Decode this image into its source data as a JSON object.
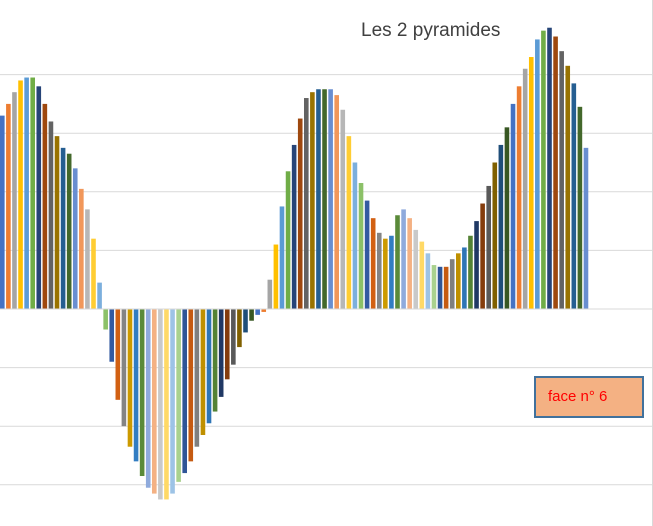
{
  "chart_data": {
    "type": "bar",
    "title": "Les 2 pyramides",
    "ylim": [
      -3.2,
      4.9
    ],
    "grid": true,
    "palette": [
      "#4472c4",
      "#ed7d31",
      "#a5a5a5",
      "#ffc000",
      "#5b9bd5",
      "#70ad47",
      "#264478",
      "#9e480e",
      "#636363",
      "#997300",
      "#255e91",
      "#43682b",
      "#698ed0",
      "#f1975a",
      "#b7b7b7",
      "#ffcd33",
      "#7cafdd",
      "#8cc168",
      "#335aa1",
      "#d26012",
      "#848484",
      "#cc9a00",
      "#327dc2",
      "#5a8a39",
      "#8faadc",
      "#f4b183",
      "#c9c9c9",
      "#ffd966",
      "#9dc3e6",
      "#a9d18e",
      "#2f5597",
      "#c55a11",
      "#7f7f7f",
      "#bf9000",
      "#2e75b6",
      "#548235",
      "#203864",
      "#843c0c",
      "#595959",
      "#806000",
      "#1f4e79",
      "#385723"
    ],
    "values": [
      3.3,
      3.5,
      3.7,
      3.9,
      3.95,
      3.95,
      3.8,
      3.5,
      3.2,
      2.95,
      2.75,
      2.65,
      2.4,
      2.05,
      1.7,
      1.2,
      0.45,
      -0.35,
      -0.9,
      -1.55,
      -2.0,
      -2.35,
      -2.6,
      -2.85,
      -3.05,
      -3.15,
      -3.25,
      -3.25,
      -3.15,
      -2.95,
      -2.8,
      -2.6,
      -2.35,
      -2.15,
      -1.95,
      -1.75,
      -1.5,
      -1.2,
      -0.95,
      -0.65,
      -0.4,
      -0.2,
      -0.1,
      -0.05,
      0.5,
      1.1,
      1.75,
      2.35,
      2.8,
      3.25,
      3.6,
      3.7,
      3.75,
      3.75,
      3.75,
      3.65,
      3.4,
      2.95,
      2.5,
      2.15,
      1.85,
      1.55,
      1.3,
      1.2,
      1.25,
      1.6,
      1.7,
      1.55,
      1.35,
      1.15,
      0.95,
      0.75,
      0.72,
      0.72,
      0.85,
      0.95,
      1.05,
      1.25,
      1.5,
      1.8,
      2.1,
      2.5,
      2.8,
      3.1,
      3.5,
      3.8,
      4.1,
      4.3,
      4.6,
      4.75,
      4.8,
      4.65,
      4.4,
      4.15,
      3.85,
      3.45,
      2.75
    ]
  },
  "annotation": {
    "label": "face n° 6"
  }
}
